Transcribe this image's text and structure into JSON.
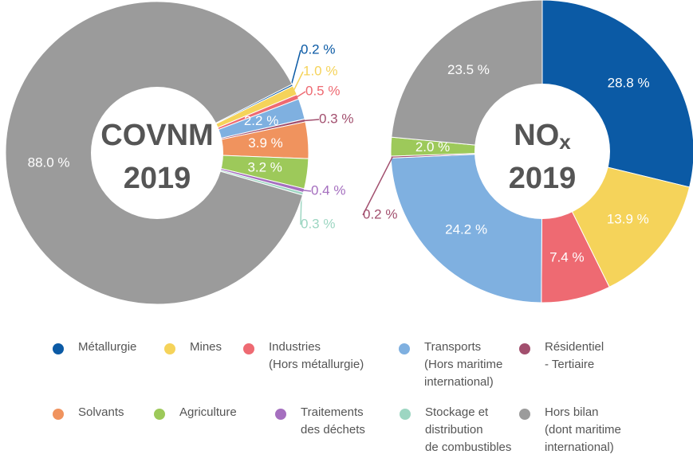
{
  "chart_data": [
    {
      "type": "pie",
      "title": "COVNM",
      "subtitle": "2019",
      "values": [
        0.2,
        1.0,
        0.5,
        2.2,
        0.3,
        3.9,
        3.2,
        0.4,
        0.3,
        88.0
      ],
      "value_labels": [
        "0.2 %",
        "1.0 %",
        "0.5 %",
        "2.2 %",
        "0.3 %",
        "3.9 %",
        "3.2 %",
        "0.4 %",
        "0.3 %",
        "88.0 %"
      ],
      "colors": [
        "#0b5aa5",
        "#f5d35a",
        "#ee6a72",
        "#7fb0e0",
        "#a24f6e",
        "#f0935e",
        "#9dc95a",
        "#a56fbf",
        "#9dd6c2",
        "#9b9b9b"
      ]
    },
    {
      "type": "pie",
      "title": "NO",
      "title_sub": "x",
      "subtitle": "2019",
      "values": [
        28.8,
        13.9,
        7.4,
        24.2,
        0.2,
        2.0,
        23.5
      ],
      "value_labels": [
        "28.8 %",
        "13.9 %",
        "7.4 %",
        "24.2 %",
        "0.2 %",
        "2.0 %",
        "23.5 %"
      ],
      "colors": [
        "#0b5aa5",
        "#f5d35a",
        "#ee6a72",
        "#7fb0e0",
        "#a24f6e",
        "#9dc95a",
        "#9b9b9b"
      ]
    }
  ],
  "legend": [
    {
      "lines": [
        "Métallurgie"
      ],
      "color": "#0b5aa5"
    },
    {
      "lines": [
        "Mines"
      ],
      "color": "#f5d35a"
    },
    {
      "lines": [
        "Industries",
        "(Hors métallurgie)"
      ],
      "color": "#ee6a72"
    },
    {
      "lines": [
        "Transports",
        "(Hors maritime",
        "international)"
      ],
      "color": "#7fb0e0"
    },
    {
      "lines": [
        "Résidentiel",
        "- Tertiaire"
      ],
      "color": "#a24f6e"
    },
    {
      "lines": [
        "Solvants"
      ],
      "color": "#f0935e"
    },
    {
      "lines": [
        "Agriculture"
      ],
      "color": "#9dc95a"
    },
    {
      "lines": [
        "Traitements",
        "des déchets"
      ],
      "color": "#a56fbf"
    },
    {
      "lines": [
        "Stockage et",
        "distribution",
        "de combustibles"
      ],
      "color": "#9dd6c2"
    },
    {
      "lines": [
        "Hors bilan",
        "(dont maritime",
        "international)"
      ],
      "color": "#9b9b9b"
    }
  ]
}
